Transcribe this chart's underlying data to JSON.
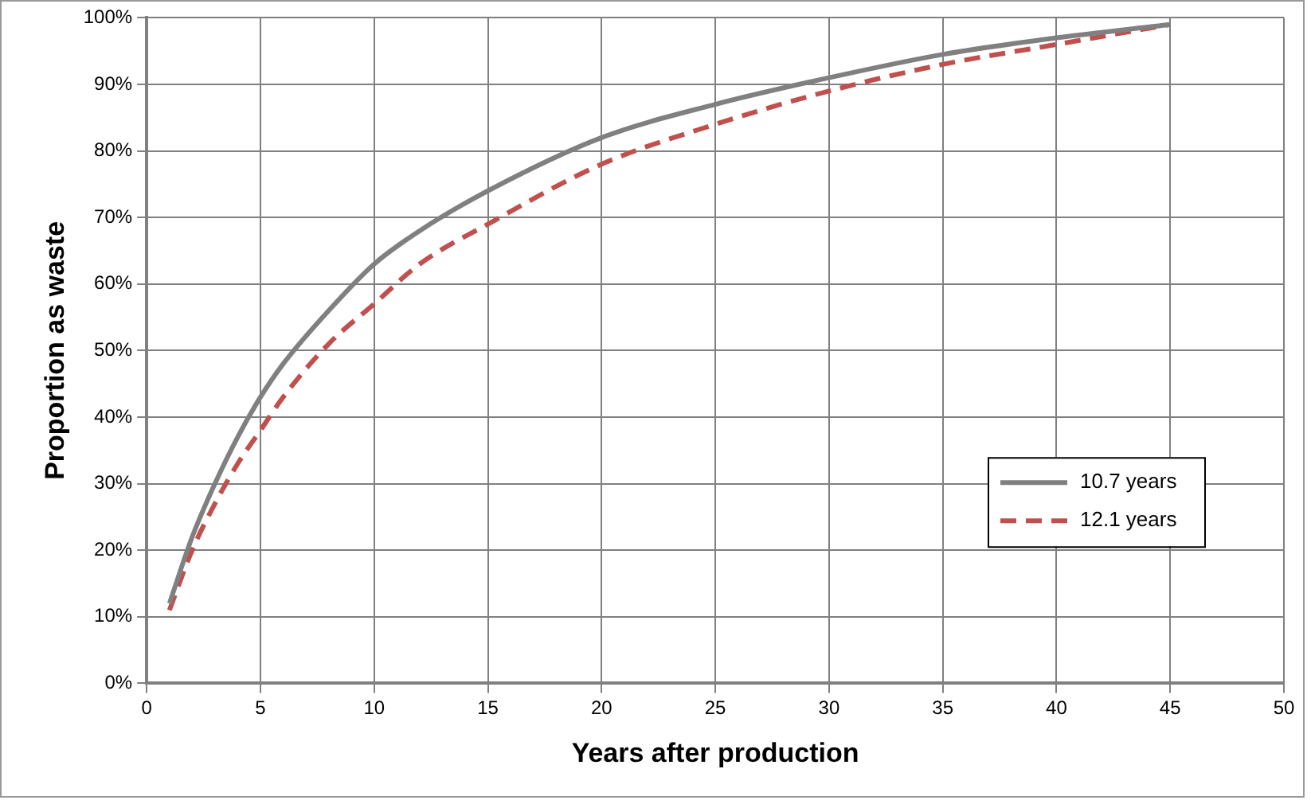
{
  "chart_data": {
    "type": "line",
    "xlabel": "Years after production",
    "ylabel": "Proportion as waste",
    "xlim": [
      0,
      50
    ],
    "xticks": [
      0,
      5,
      10,
      15,
      20,
      25,
      30,
      35,
      40,
      45,
      50
    ],
    "ylim": [
      0,
      100
    ],
    "yticks": [
      {
        "value": 0,
        "label": "0%"
      },
      {
        "value": 10,
        "label": "10%"
      },
      {
        "value": 20,
        "label": "20%"
      },
      {
        "value": 30,
        "label": "30%"
      },
      {
        "value": 40,
        "label": "40%"
      },
      {
        "value": 50,
        "label": "50%"
      },
      {
        "value": 60,
        "label": "60%"
      },
      {
        "value": 70,
        "label": "70%"
      },
      {
        "value": 80,
        "label": "80%"
      },
      {
        "value": 90,
        "label": "90%"
      },
      {
        "value": 100,
        "label": "100%"
      }
    ],
    "x": [
      1,
      2,
      3,
      4,
      5,
      6,
      8,
      10,
      12,
      15,
      20,
      25,
      30,
      35,
      40,
      45
    ],
    "series": [
      {
        "name": "10.7 years",
        "color": "#808080",
        "line_style": "solid",
        "values": [
          12,
          22,
          30,
          37,
          43,
          48,
          56,
          63,
          68,
          74,
          82,
          87,
          91,
          94.5,
          97,
          99
        ]
      },
      {
        "name": "12.1 years",
        "color": "#c0504d",
        "line_style": "dashed",
        "values": [
          11,
          20,
          27,
          33,
          38,
          43,
          51,
          57,
          63,
          69,
          78,
          84,
          89,
          93,
          96,
          99
        ]
      }
    ],
    "grid": true,
    "legend": "right",
    "marker": "none"
  }
}
